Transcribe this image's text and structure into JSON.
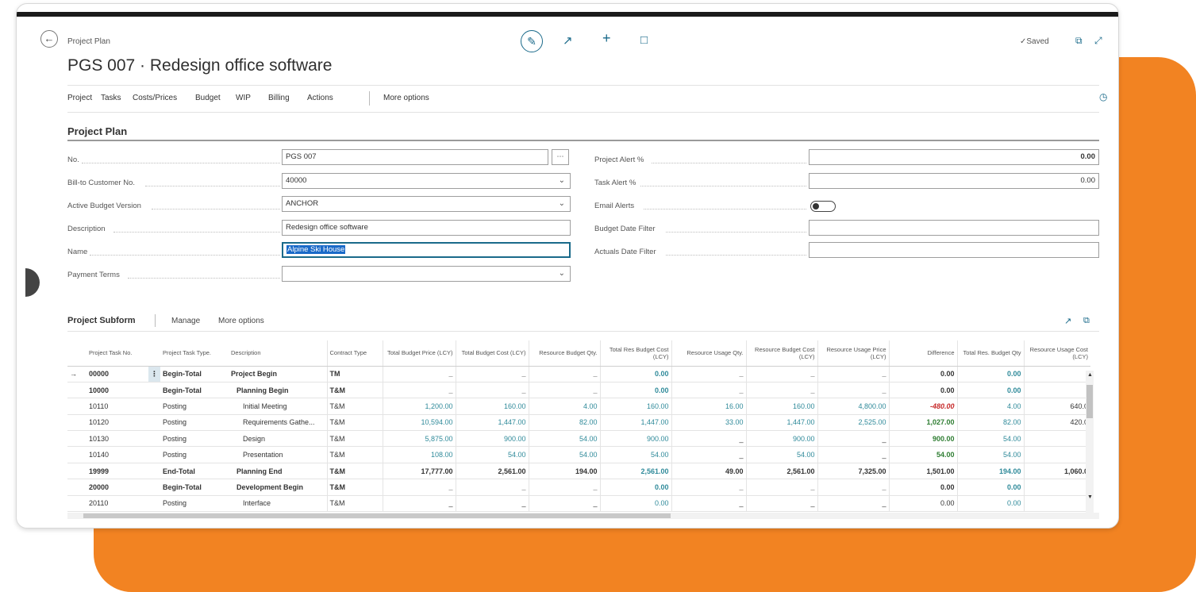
{
  "header": {
    "breadcrumb": "Project Plan",
    "title": "PGS 007 · Redesign office software",
    "saved": "Saved",
    "icons": {
      "back": "back-arrow-icon",
      "edit": "pencil-icon",
      "share": "share-icon",
      "add": "plus-icon",
      "delete": "trash-icon",
      "open_new": "open-new-window-icon",
      "collapse": "collapse-icon"
    }
  },
  "menu": {
    "items": [
      "Project",
      "Tasks",
      "Costs/Prices",
      "Budget",
      "WIP",
      "Billing",
      "Actions"
    ],
    "more": "More options"
  },
  "section": {
    "title": "Project Plan"
  },
  "form": {
    "left": [
      {
        "label": "No.",
        "value": "PGS 007",
        "control": "assist"
      },
      {
        "label": "Bill-to Customer No.",
        "value": "40000",
        "control": "dropdown"
      },
      {
        "label": "Active Budget Version",
        "value": "ANCHOR",
        "control": "dropdown"
      },
      {
        "label": "Description",
        "value": "Redesign office software",
        "control": "text"
      },
      {
        "label": "Name",
        "value": "Alpine Ski House",
        "control": "text-selected"
      },
      {
        "label": "Payment Terms",
        "value": "",
        "control": "dropdown"
      }
    ],
    "right": [
      {
        "label": "Project Alert %",
        "value": "0.00",
        "bold": true
      },
      {
        "label": "Task Alert %",
        "value": "0.00",
        "bold": false
      },
      {
        "label": "Email Alerts",
        "toggle": false
      },
      {
        "label": "Budget Date Filter",
        "value": ""
      },
      {
        "label": "Actuals Date Filter",
        "value": ""
      }
    ]
  },
  "subform": {
    "title": "Project Subform",
    "actions": [
      "Manage",
      "More options"
    ],
    "columns": [
      "Project Task No.",
      "Project Task Type.",
      "Description",
      "Contract Type",
      "Total Budget Price (LCY)",
      "Total Budget Cost (LCY)",
      "Resource Budget Qty.",
      "Total Res Budget Cost (LCY)",
      "Resource Usage Qty.",
      "Resource Budget Cost (LCY)",
      "Resource Usage Price (LCY)",
      "Difference",
      "Total Res. Budget Qty",
      "Resource Usage Cost (LCY)"
    ],
    "rows": [
      {
        "no": "00000",
        "type": "Begin-Total",
        "desc": "Project Begin",
        "contract": "TM",
        "tbp": "_",
        "tbc": "_",
        "rbq": "_",
        "trbc": "0.00",
        "ruq": "_",
        "rbc": "_",
        "rup": "_",
        "diff": "0.00",
        "trbq": "0.00",
        "ruc": "",
        "bold": true,
        "indent": 0,
        "current": true
      },
      {
        "no": "10000",
        "type": "Begin-Total",
        "desc": "Planning Begin",
        "contract": "T&M",
        "tbp": "_",
        "tbc": "_",
        "rbq": "_",
        "trbc": "0.00",
        "ruq": "_",
        "rbc": "_",
        "rup": "_",
        "diff": "0.00",
        "trbq": "0.00",
        "ruc": ".",
        "bold": true,
        "indent": 1
      },
      {
        "no": "10110",
        "type": "Posting",
        "desc": "Initial Meeting",
        "contract": "T&M",
        "tbp": "1,200.00",
        "tbc": "160.00",
        "rbq": "4.00",
        "trbc": "160.00",
        "ruq": "16.00",
        "rbc": "160.00",
        "rup": "4,800.00",
        "diff": "-480.00",
        "trbq": "4.00",
        "ruc": "640.0",
        "bold": false,
        "indent": 2,
        "diff_style": "neg"
      },
      {
        "no": "10120",
        "type": "Posting",
        "desc": "Requirements Gathe...",
        "contract": "T&M",
        "tbp": "10,594.00",
        "tbc": "1,447.00",
        "rbq": "82.00",
        "trbc": "1,447.00",
        "ruq": "33.00",
        "rbc": "1,447.00",
        "rup": "2,525.00",
        "diff": "1,027.00",
        "trbq": "82.00",
        "ruc": "420.0",
        "bold": false,
        "indent": 2,
        "diff_style": "green"
      },
      {
        "no": "10130",
        "type": "Posting",
        "desc": "Design",
        "contract": "T&M",
        "tbp": "5,875.00",
        "tbc": "900.00",
        "rbq": "54.00",
        "trbc": "900.00",
        "ruq": "_",
        "rbc": "900.00",
        "rup": "_",
        "diff": "900.00",
        "trbq": "54.00",
        "ruc": ".",
        "bold": false,
        "indent": 2,
        "diff_style": "green"
      },
      {
        "no": "10140",
        "type": "Posting",
        "desc": "Presentation",
        "contract": "T&M",
        "tbp": "108.00",
        "tbc": "54.00",
        "rbq": "54.00",
        "trbc": "54.00",
        "ruq": "_",
        "rbc": "54.00",
        "rup": "_",
        "diff": "54.00",
        "trbq": "54.00",
        "ruc": "",
        "bold": false,
        "indent": 2,
        "diff_style": "green"
      },
      {
        "no": "19999",
        "type": "End-Total",
        "desc": "Planning End",
        "contract": "T&M",
        "tbp": "17,777.00",
        "tbc": "2,561.00",
        "rbq": "194.00",
        "trbc": "2,561.00",
        "ruq": "49.00",
        "rbc": "2,561.00",
        "rup": "7,325.00",
        "diff": "1,501.00",
        "trbq": "194.00",
        "ruc": "1,060.0",
        "bold": true,
        "indent": 1
      },
      {
        "no": "20000",
        "type": "Begin-Total",
        "desc": "Development Begin",
        "contract": "T&M",
        "tbp": "_",
        "tbc": "_",
        "rbq": "_",
        "trbc": "0.00",
        "ruq": "_",
        "rbc": "_",
        "rup": "_",
        "diff": "0.00",
        "trbq": "0.00",
        "ruc": ".",
        "bold": true,
        "indent": 1
      },
      {
        "no": "20110",
        "type": "Posting",
        "desc": "Interface",
        "contract": "T&M",
        "tbp": "_",
        "tbc": "_",
        "rbq": "_",
        "trbc": "0.00",
        "ruq": "_",
        "rbc": "_",
        "rup": "_",
        "diff": "0.00",
        "trbq": "0.00",
        "ruc": ".",
        "bold": false,
        "indent": 2
      }
    ]
  },
  "colors": {
    "accent": "#1a6a8a",
    "orange": "#f28322",
    "negative": "#c62828",
    "positive": "#2e7d32",
    "teal_value": "#2f8a9a"
  }
}
